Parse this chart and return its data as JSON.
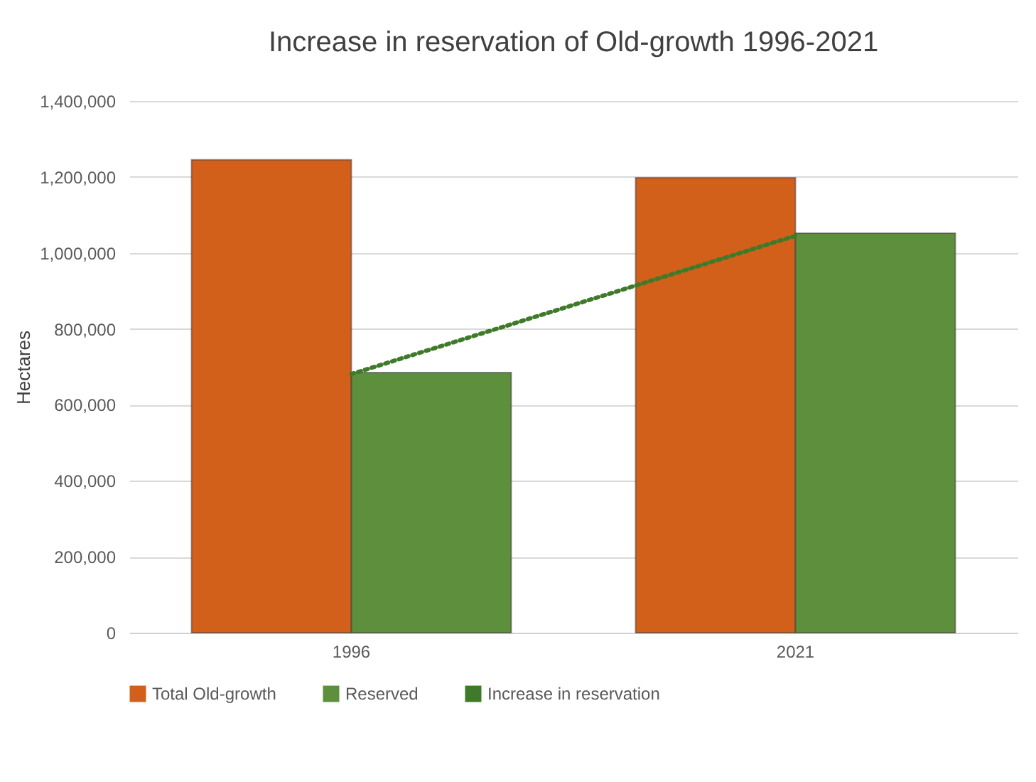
{
  "chart_data": {
    "type": "bar",
    "title": "Increase in reservation of Old-growth 1996-2021",
    "ylabel": "Hectares",
    "categories": [
      "1996",
      "2021"
    ],
    "series": [
      {
        "name": "Total Old-growth",
        "color": "#d2601a",
        "values": [
          1245000,
          1198000
        ]
      },
      {
        "name": "Reserved",
        "color": "#5e8f3c",
        "values": [
          685000,
          1052000
        ]
      },
      {
        "name": "Increase in reservation",
        "type": "line",
        "line_style": "dotted",
        "color": "#3f7a2a",
        "values": [
          681000,
          1045000
        ]
      }
    ],
    "ylim": [
      0,
      1400000
    ],
    "yticks": [
      0,
      {
        "value": 200000,
        "label": "200,000"
      },
      {
        "value": 400000,
        "label": "400,000"
      },
      {
        "value": 600000,
        "label": "600,000"
      },
      {
        "value": 800000,
        "label": "800,000"
      },
      {
        "value": 1000000,
        "label": "1,000,000"
      },
      {
        "value": 1200000,
        "label": "1,200,000"
      },
      {
        "value": 1400000,
        "label": "1,400,000"
      }
    ],
    "grid": "y",
    "legend": "bottom"
  }
}
